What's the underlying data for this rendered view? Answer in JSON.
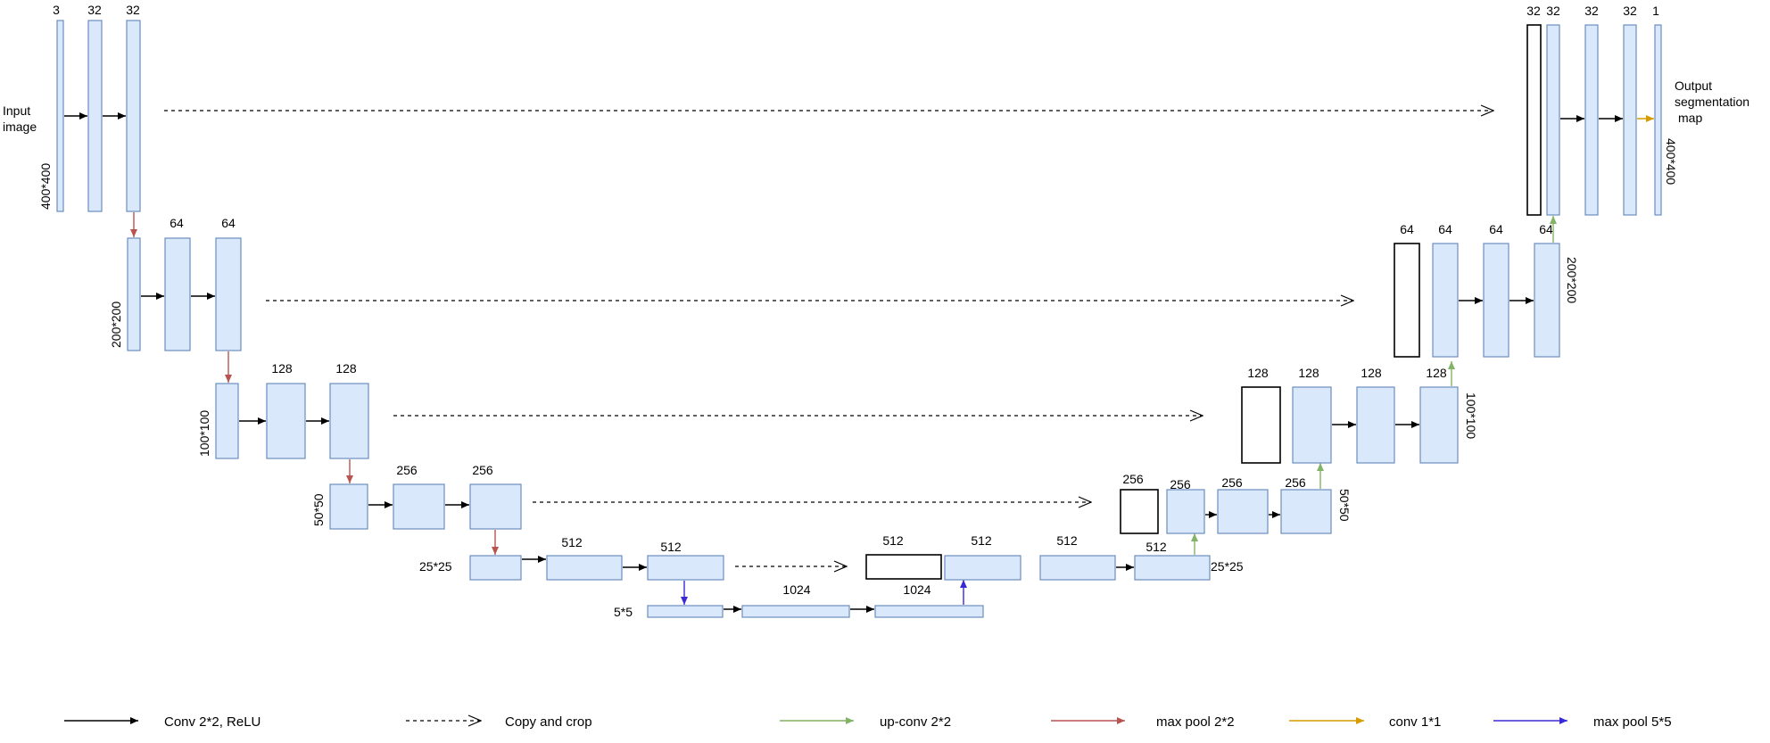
{
  "input_label": [
    "Input",
    "image"
  ],
  "output_label": [
    "Output",
    "segmentation",
    "map"
  ],
  "encoder": [
    {
      "channels": [
        "3",
        "32",
        "32"
      ],
      "size": "400*400"
    },
    {
      "channels": [
        "64",
        "64"
      ],
      "size": "200*200"
    },
    {
      "channels": [
        "128",
        "128"
      ],
      "size": "100*100"
    },
    {
      "channels": [
        "256",
        "256"
      ],
      "size": "50*50"
    },
    {
      "channels": [
        "512",
        "512"
      ],
      "size": "25*25"
    }
  ],
  "bottleneck": {
    "channels": [
      "1024",
      "1024"
    ],
    "size": "5*5"
  },
  "decoder": [
    {
      "channels": [
        "512",
        "512",
        "512",
        "512"
      ],
      "size": "25*25"
    },
    {
      "channels": [
        "256",
        "256",
        "256",
        "256"
      ],
      "size": "50*50"
    },
    {
      "channels": [
        "128",
        "128",
        "128",
        "128"
      ],
      "size": "100*100"
    },
    {
      "channels": [
        "64",
        "64",
        "64",
        "64"
      ],
      "size": "200*200"
    },
    {
      "channels": [
        "32",
        "32",
        "32",
        "32",
        "1"
      ],
      "size": "400*400"
    }
  ],
  "legend": [
    {
      "label": "Conv 2*2, ReLU",
      "style": "solid",
      "color": "#000000"
    },
    {
      "label": "Copy and  crop",
      "style": "dashed",
      "color": "#000000"
    },
    {
      "label": "up-conv 2*2",
      "style": "solid",
      "color": "#82b366"
    },
    {
      "label": "max pool 2*2",
      "style": "solid",
      "color": "#b85450"
    },
    {
      "label": "conv 1*1",
      "style": "solid",
      "color": "#d79b00"
    },
    {
      "label": "max pool 5*5",
      "style": "solid",
      "color": "#3a2ad6"
    }
  ]
}
